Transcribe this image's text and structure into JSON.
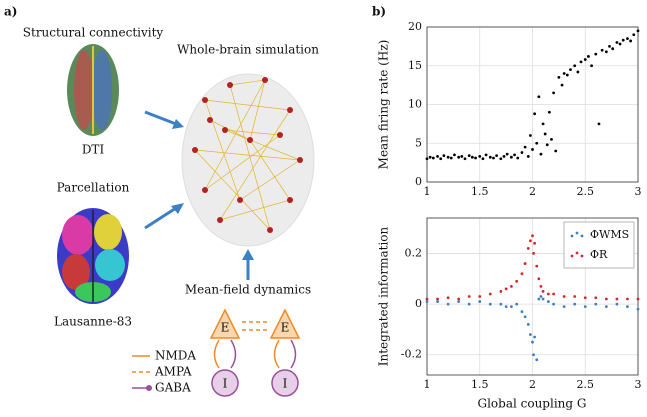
{
  "panel_a": {
    "label": "a)",
    "structural": "Structural connectivity",
    "dti": "DTI",
    "parcellation": "Parcellation",
    "atlas": "Lausanne-83",
    "simulation": "Whole-brain simulation",
    "dynamics": "Mean-field dynamics",
    "node_e1": "E",
    "node_e2": "E",
    "node_i1": "I",
    "node_i2": "I",
    "legend": [
      "NMDA",
      "AMPA",
      "GABA"
    ]
  },
  "panel_b": {
    "label": "b)",
    "xlabel": "Global coupling G"
  },
  "chart_data": [
    {
      "type": "scatter",
      "ylabel": "Mean firing rate (Hz)",
      "xlim": [
        1,
        3
      ],
      "ylim": [
        0,
        20
      ],
      "xticks": [
        1,
        1.5,
        2,
        2.5,
        3
      ],
      "yticks": [
        0,
        5,
        10,
        15,
        20
      ],
      "grid": true,
      "series": [
        {
          "color": "#000000",
          "x": [
            1.0,
            1.03,
            1.06,
            1.1,
            1.13,
            1.16,
            1.2,
            1.23,
            1.26,
            1.3,
            1.33,
            1.36,
            1.4,
            1.43,
            1.46,
            1.5,
            1.53,
            1.56,
            1.6,
            1.63,
            1.66,
            1.7,
            1.73,
            1.76,
            1.8,
            1.83,
            1.86,
            1.9,
            1.93,
            1.96,
            1.98,
            2.0,
            2.02,
            2.04,
            2.06,
            2.08,
            2.1,
            2.12,
            2.14,
            2.16,
            2.18,
            2.2,
            2.22,
            2.25,
            2.28,
            2.3,
            2.33,
            2.36,
            2.4,
            2.43,
            2.46,
            2.5,
            2.53,
            2.56,
            2.6,
            2.63,
            2.66,
            2.7,
            2.73,
            2.76,
            2.8,
            2.83,
            2.86,
            2.9,
            2.93,
            2.96,
            3.0
          ],
          "values": [
            3.0,
            3.2,
            3.1,
            3.3,
            3.0,
            3.4,
            3.2,
            3.1,
            3.5,
            3.2,
            3.3,
            3.0,
            3.4,
            3.2,
            3.1,
            3.3,
            3.0,
            3.5,
            3.2,
            3.1,
            3.4,
            3.0,
            3.3,
            3.6,
            3.2,
            3.5,
            3.1,
            3.8,
            4.5,
            3.3,
            6.0,
            4.2,
            8.8,
            5.0,
            11.0,
            3.6,
            7.5,
            6.2,
            4.8,
            9.0,
            5.5,
            11.5,
            4.0,
            13.5,
            12.5,
            14.0,
            13.8,
            14.5,
            15.0,
            14.2,
            15.5,
            15.8,
            16.2,
            15.0,
            16.5,
            7.5,
            17.0,
            16.8,
            17.5,
            17.2,
            18.0,
            17.8,
            18.3,
            18.5,
            18.2,
            19.0,
            19.5
          ]
        }
      ]
    },
    {
      "type": "scatter",
      "ylabel": "Integrated information",
      "xlim": [
        1,
        3
      ],
      "ylim": [
        -0.28,
        0.34
      ],
      "xticks": [
        1,
        1.5,
        2,
        2.5,
        3
      ],
      "yticks": [
        -0.2,
        0,
        0.2
      ],
      "grid": true,
      "legend": "upper right",
      "series": [
        {
          "name": "ΦWMS",
          "color": "#3b7fc4",
          "x": [
            1.0,
            1.1,
            1.2,
            1.3,
            1.4,
            1.5,
            1.6,
            1.7,
            1.75,
            1.8,
            1.85,
            1.9,
            1.93,
            1.96,
            1.98,
            2.0,
            2.01,
            2.02,
            2.04,
            2.06,
            2.08,
            2.1,
            2.15,
            2.2,
            2.3,
            2.4,
            2.5,
            2.6,
            2.7,
            2.8,
            2.9,
            3.0
          ],
          "values": [
            0.01,
            0.01,
            0.0,
            0.01,
            0.0,
            0.01,
            0.0,
            0.0,
            -0.01,
            -0.01,
            0.0,
            -0.03,
            -0.05,
            -0.08,
            -0.12,
            -0.15,
            -0.2,
            -0.13,
            -0.22,
            0.02,
            0.03,
            0.02,
            0.01,
            0.0,
            -0.01,
            0.0,
            -0.01,
            0.0,
            -0.01,
            0.0,
            -0.01,
            -0.02
          ]
        },
        {
          "name": "ΦR",
          "color": "#d62728",
          "x": [
            1.0,
            1.1,
            1.2,
            1.3,
            1.4,
            1.5,
            1.6,
            1.7,
            1.75,
            1.8,
            1.85,
            1.9,
            1.93,
            1.96,
            1.98,
            2.0,
            2.01,
            2.02,
            2.04,
            2.06,
            2.08,
            2.1,
            2.15,
            2.2,
            2.3,
            2.4,
            2.5,
            2.6,
            2.7,
            2.8,
            2.9,
            3.0
          ],
          "values": [
            0.02,
            0.02,
            0.025,
            0.02,
            0.03,
            0.03,
            0.04,
            0.05,
            0.06,
            0.07,
            0.09,
            0.12,
            0.16,
            0.22,
            0.25,
            0.27,
            0.2,
            0.24,
            0.15,
            0.1,
            0.07,
            0.05,
            0.04,
            0.04,
            0.03,
            0.03,
            0.025,
            0.025,
            0.02,
            0.02,
            0.02,
            0.02
          ]
        }
      ]
    }
  ]
}
